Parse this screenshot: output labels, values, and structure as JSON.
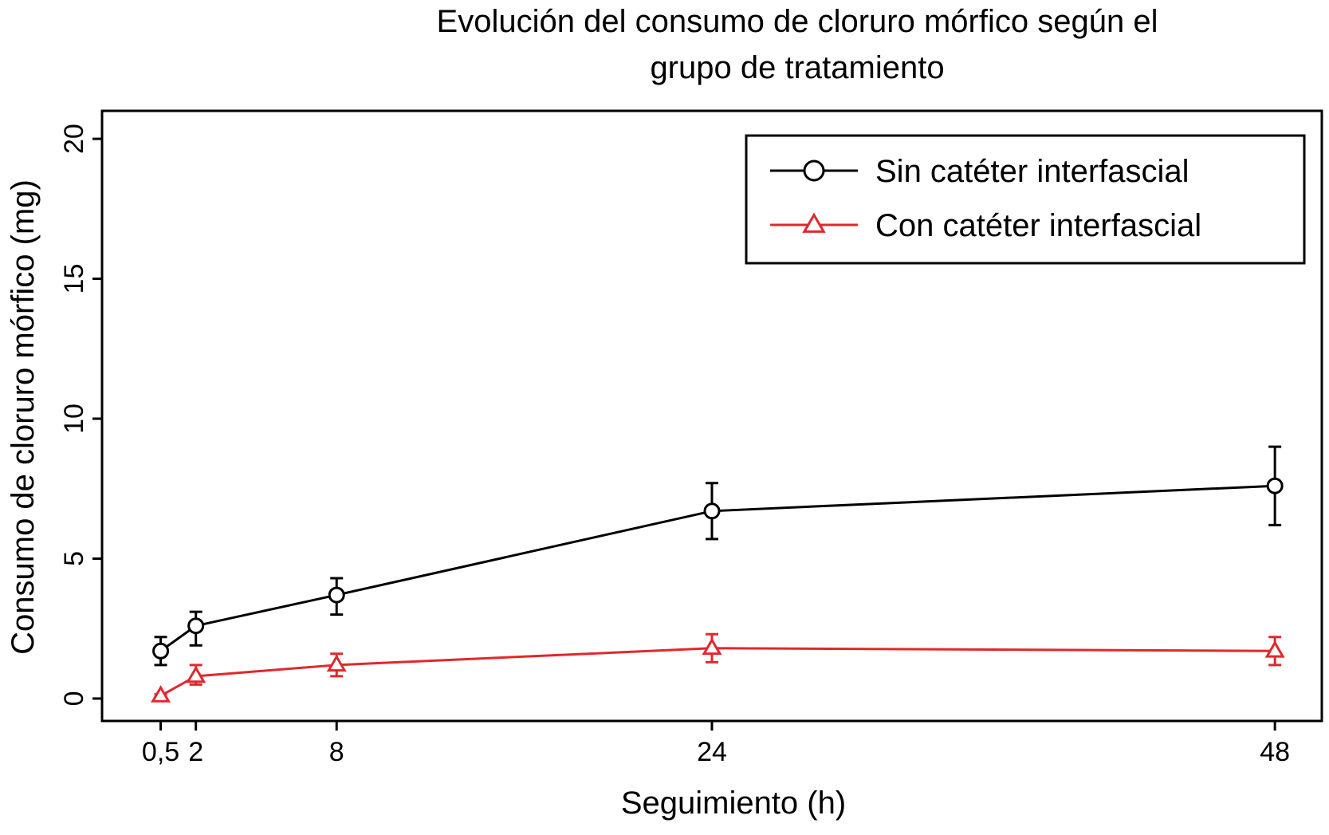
{
  "chart_data": {
    "type": "line",
    "title_lines": [
      "Evolución del consumo de cloruro mórfico según el",
      "grupo de tratamiento"
    ],
    "xlabel": "Seguimiento (h)",
    "ylabel": "Consumo de cloruro mórfico (mg)",
    "x_ticks": [
      {
        "value": 0.5,
        "label": "0,5"
      },
      {
        "value": 2,
        "label": "2"
      },
      {
        "value": 8,
        "label": "8"
      },
      {
        "value": 24,
        "label": "24"
      },
      {
        "value": 48,
        "label": "48"
      }
    ],
    "y_ticks": [
      {
        "value": 0,
        "label": "0"
      },
      {
        "value": 5,
        "label": "5"
      },
      {
        "value": 10,
        "label": "10"
      },
      {
        "value": 15,
        "label": "15"
      },
      {
        "value": 20,
        "label": "20"
      }
    ],
    "xlim": [
      -2,
      50
    ],
    "ylim": [
      -0.8,
      21
    ],
    "grid": false,
    "legend_position": "top-right",
    "series": [
      {
        "name": "Sin catéter interfascial",
        "color": "#000000",
        "marker": "circle",
        "x": [
          0.5,
          2,
          8,
          24,
          48
        ],
        "y": [
          1.7,
          2.6,
          3.7,
          6.7,
          7.6
        ],
        "err_low": [
          1.2,
          1.9,
          3.0,
          5.7,
          6.2
        ],
        "err_high": [
          2.2,
          3.1,
          4.3,
          7.7,
          9.0
        ]
      },
      {
        "name": "Con catéter interfascial",
        "color": "#e0282e",
        "marker": "triangle",
        "x": [
          0.5,
          2,
          8,
          24,
          48
        ],
        "y": [
          0.1,
          0.8,
          1.2,
          1.8,
          1.7
        ],
        "err_low": [
          0.05,
          0.5,
          0.8,
          1.3,
          1.2
        ],
        "err_high": [
          0.15,
          1.2,
          1.6,
          2.3,
          2.2
        ]
      }
    ]
  }
}
